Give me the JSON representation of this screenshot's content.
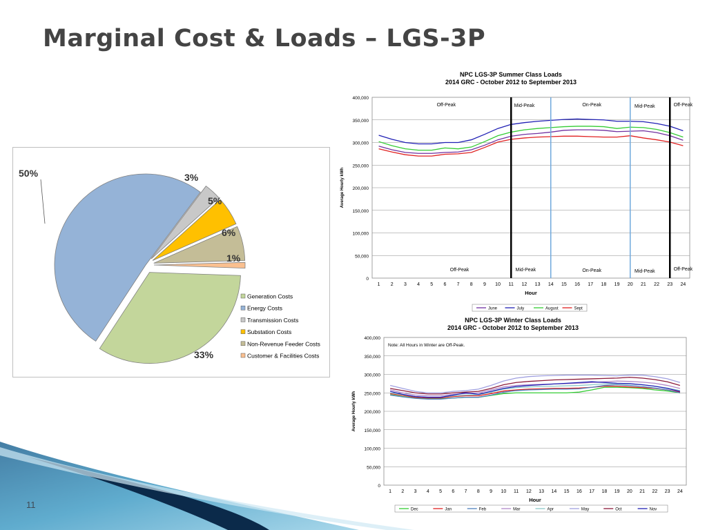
{
  "slide": {
    "title": "Marginal Cost & Loads – LGS-3P",
    "page_number": "11"
  },
  "chart_data": [
    {
      "type": "pie",
      "slices": [
        {
          "name": "Generation Costs",
          "value": 33,
          "label": "33%",
          "color": "#c3d69b"
        },
        {
          "name": "Energy Costs",
          "value": 50,
          "label": "50%",
          "color": "#95b3d7"
        },
        {
          "name": "Transmission Costs",
          "value": 3,
          "label": "3%",
          "color": "#c8c8c8"
        },
        {
          "name": "Substation Costs",
          "value": 5,
          "label": "5%",
          "color": "#ffc000"
        },
        {
          "name": "Non-Revenue Feeder Costs",
          "value": 6,
          "label": "6%",
          "color": "#c4bd97"
        },
        {
          "name": "Customer & Facilities Costs",
          "value": 1,
          "label": "1%",
          "color": "#fac090"
        }
      ],
      "legend_position": "bottom-right"
    },
    {
      "type": "line",
      "title": "NPC LGS-3P Summer Class Loads",
      "subtitle": "2014 GRC - October 2012 to September 2013",
      "xlabel": "Hour",
      "ylabel": "Average Hourly kWh",
      "x": [
        1,
        2,
        3,
        4,
        5,
        6,
        7,
        8,
        9,
        10,
        11,
        12,
        13,
        14,
        15,
        16,
        17,
        18,
        19,
        20,
        21,
        22,
        23,
        24
      ],
      "ylim": [
        0,
        400000
      ],
      "yticks": [
        "0",
        "50,000",
        "100,000",
        "150,000",
        "200,000",
        "250,000",
        "300,000",
        "350,000",
        "400,000"
      ],
      "grid": true,
      "legend_position": "bottom",
      "series": [
        {
          "name": "June",
          "color": "#7030a0",
          "values": [
            292000,
            284000,
            278000,
            276000,
            276000,
            278000,
            279000,
            284000,
            294000,
            306000,
            314000,
            318000,
            320000,
            323000,
            327000,
            328000,
            328000,
            327000,
            324000,
            325000,
            326000,
            322000,
            315000,
            305000
          ]
        },
        {
          "name": "July",
          "color": "#1f1fb4",
          "values": [
            316000,
            307000,
            300000,
            297000,
            297000,
            300000,
            300000,
            306000,
            318000,
            331000,
            340000,
            344000,
            347000,
            349000,
            351000,
            352000,
            351000,
            350000,
            347000,
            347000,
            346000,
            342000,
            336000,
            326000
          ]
        },
        {
          "name": "August",
          "color": "#33cc33",
          "values": [
            302000,
            293000,
            286000,
            283000,
            283000,
            288000,
            286000,
            290000,
            302000,
            315000,
            323000,
            328000,
            331000,
            333000,
            335000,
            336000,
            336000,
            335000,
            331000,
            334000,
            333000,
            329000,
            322000,
            312000
          ]
        },
        {
          "name": "Sept",
          "color": "#e02020",
          "values": [
            286000,
            279000,
            273000,
            270000,
            270000,
            274000,
            275000,
            278000,
            289000,
            301000,
            307000,
            310000,
            312000,
            313000,
            314000,
            314000,
            313000,
            312000,
            312000,
            315000,
            310000,
            306000,
            301000,
            293000
          ]
        }
      ],
      "period_labels_top": [
        "Off-Peak",
        "Mid-Peak",
        "On-Peak",
        "Mid-Peak",
        "Off-Peak"
      ],
      "period_labels_bottom": [
        "Off-Peak",
        "Mid-Peak",
        "On-Peak",
        "Mid-Peak",
        "Off-Peak"
      ]
    },
    {
      "type": "line",
      "title": "NPC LGS-3P Winter Class Loads",
      "subtitle": "2014 GRC - October 2012 to September 2013",
      "xlabel": "Hour",
      "ylabel": "Average Hourly kWh",
      "note": "Note: All Hours in Winter are Off-Peak.",
      "x": [
        1,
        2,
        3,
        4,
        5,
        6,
        7,
        8,
        9,
        10,
        11,
        12,
        13,
        14,
        15,
        16,
        17,
        18,
        19,
        20,
        21,
        22,
        23,
        24
      ],
      "ylim": [
        0,
        400000
      ],
      "yticks": [
        "0",
        "50,000",
        "100,000",
        "150,000",
        "200,000",
        "250,000",
        "300,000",
        "350,000",
        "400,000"
      ],
      "grid": true,
      "legend_position": "bottom",
      "series": [
        {
          "name": "Dec",
          "color": "#33cc33",
          "values": [
            245000,
            240000,
            236000,
            234000,
            234000,
            236000,
            238000,
            238000,
            243000,
            248000,
            250000,
            250000,
            250000,
            250000,
            250000,
            252000,
            258000,
            265000,
            265000,
            264000,
            262000,
            258000,
            255000,
            250000
          ]
        },
        {
          "name": "Jan",
          "color": "#e02020",
          "values": [
            248000,
            243000,
            238000,
            236000,
            236000,
            240000,
            242000,
            242000,
            248000,
            255000,
            258000,
            260000,
            261000,
            262000,
            262000,
            263000,
            265000,
            268000,
            268000,
            266000,
            264000,
            262000,
            258000,
            252000
          ]
        },
        {
          "name": "Feb",
          "color": "#4f81bd",
          "values": [
            244000,
            239000,
            235000,
            233000,
            233000,
            236000,
            238000,
            238000,
            244000,
            252000,
            256000,
            258000,
            259000,
            260000,
            260000,
            261000,
            265000,
            270000,
            272000,
            270000,
            267000,
            263000,
            258000,
            250000
          ]
        },
        {
          "name": "Mar",
          "color": "#b088c8",
          "values": [
            258000,
            250000,
            244000,
            242000,
            242000,
            246000,
            248000,
            250000,
            258000,
            266000,
            270000,
            272000,
            273000,
            274000,
            275000,
            276000,
            278000,
            280000,
            282000,
            281000,
            279000,
            276000,
            270000,
            262000
          ]
        },
        {
          "name": "Apr",
          "color": "#8cc8c8",
          "values": [
            250000,
            245000,
            240000,
            238000,
            238000,
            242000,
            244000,
            245000,
            252000,
            260000,
            264000,
            266000,
            267000,
            268000,
            269000,
            270000,
            272000,
            274000,
            275000,
            274000,
            272000,
            268000,
            263000,
            256000
          ]
        },
        {
          "name": "May",
          "color": "#a0a0e0",
          "values": [
            270000,
            262000,
            254000,
            250000,
            250000,
            254000,
            256000,
            260000,
            270000,
            282000,
            290000,
            294000,
            296000,
            297000,
            298000,
            298000,
            298000,
            297000,
            296000,
            298000,
            298000,
            294000,
            288000,
            278000
          ]
        },
        {
          "name": "Oct",
          "color": "#8b1a3a",
          "values": [
            262000,
            256000,
            250000,
            247000,
            247000,
            250000,
            252000,
            254000,
            262000,
            272000,
            278000,
            281000,
            283000,
            285000,
            286000,
            287000,
            288000,
            289000,
            290000,
            292000,
            290000,
            286000,
            280000,
            270000
          ]
        },
        {
          "name": "Nov",
          "color": "#1f1fb4",
          "values": [
            254000,
            246000,
            240000,
            238000,
            238000,
            244000,
            250000,
            246000,
            254000,
            262000,
            267000,
            270000,
            272000,
            274000,
            276000,
            278000,
            280000,
            278000,
            276000,
            275000,
            272000,
            268000,
            262000,
            254000
          ]
        }
      ]
    }
  ]
}
